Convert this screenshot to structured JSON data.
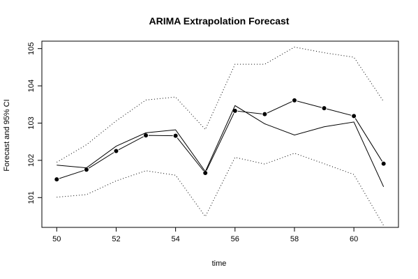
{
  "chart_data": {
    "type": "line",
    "title": "ARIMA Extrapolation Forecast",
    "xlabel": "time",
    "ylabel": "Forecast and 95% CI",
    "xlim": [
      49.5,
      61.5
    ],
    "ylim": [
      100.2,
      105.2
    ],
    "xticks": [
      50,
      52,
      54,
      56,
      58,
      60
    ],
    "yticks": [
      101,
      102,
      103,
      104,
      105
    ],
    "x": [
      50,
      51,
      52,
      53,
      54,
      55,
      56,
      57,
      58,
      59,
      60,
      61
    ],
    "series": [
      {
        "role": "forecast",
        "style": "line-with-points",
        "values": [
          101.49,
          101.75,
          102.25,
          102.67,
          102.66,
          101.66,
          103.33,
          103.24,
          103.61,
          103.4,
          103.19,
          101.91
        ]
      },
      {
        "role": "actual",
        "style": "solid-line",
        "values": [
          101.87,
          101.8,
          102.38,
          102.74,
          102.82,
          101.7,
          103.47,
          102.98,
          102.68,
          102.9,
          103.03,
          101.29
        ]
      },
      {
        "role": "upper-95-ci",
        "style": "dotted-line",
        "values": [
          101.95,
          102.42,
          103.06,
          103.62,
          103.7,
          102.83,
          104.58,
          104.58,
          105.04,
          104.89,
          104.77,
          103.58
        ]
      },
      {
        "role": "lower-95-ci",
        "style": "dotted-line",
        "values": [
          101.01,
          101.08,
          101.45,
          101.72,
          101.6,
          100.49,
          102.08,
          101.9,
          102.19,
          101.91,
          101.62,
          100.25
        ]
      }
    ],
    "grid": false
  }
}
